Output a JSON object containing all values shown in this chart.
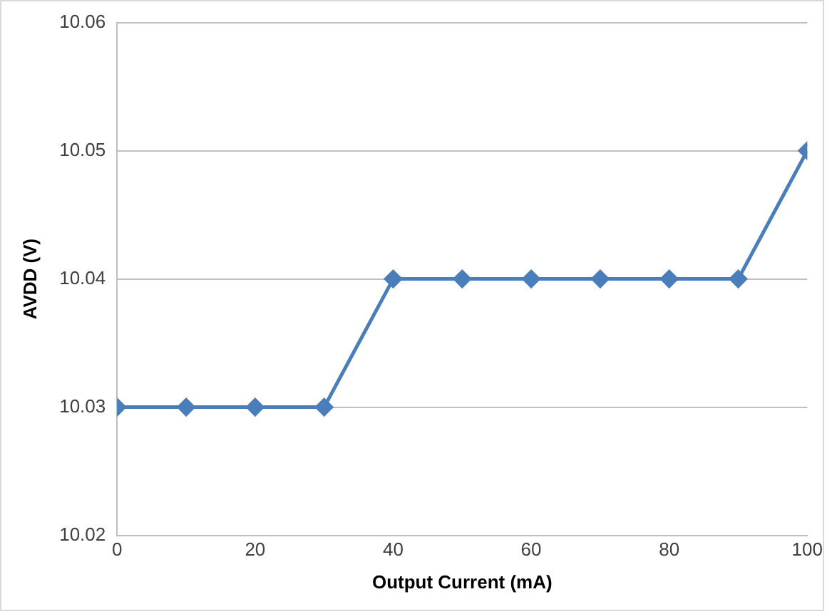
{
  "chart_data": {
    "type": "line",
    "xlabel": "Output Current (mA)",
    "ylabel": "AVDD (V)",
    "x": [
      0,
      10,
      20,
      30,
      40,
      50,
      60,
      70,
      80,
      90,
      100
    ],
    "series": [
      {
        "color": "#4a7ebb",
        "values": [
          10.03,
          10.03,
          10.03,
          10.03,
          10.04,
          10.04,
          10.04,
          10.04,
          10.04,
          10.04,
          10.05
        ]
      }
    ],
    "xlim": [
      0,
      100
    ],
    "xticks": [
      0,
      20,
      40,
      60,
      80,
      100
    ],
    "ylim": [
      10.02,
      10.06
    ],
    "yticks": [
      10.02,
      10.03,
      10.04,
      10.05,
      10.06
    ],
    "grid": "y",
    "marker": "diamond",
    "line_style": "solid",
    "legend": false
  }
}
